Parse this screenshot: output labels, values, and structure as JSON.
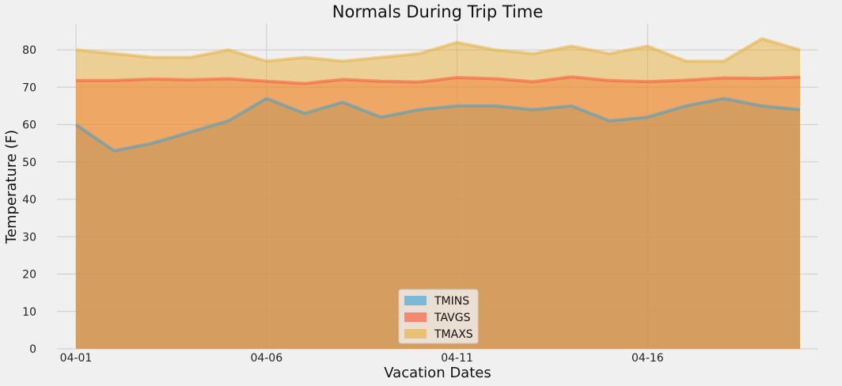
{
  "chart_data": {
    "type": "area",
    "title": "Normals During Trip Time",
    "xlabel": "Vacation Dates",
    "ylabel": "Temperature (F)",
    "x": [
      "04-01",
      "04-02",
      "04-03",
      "04-04",
      "04-05",
      "04-06",
      "04-07",
      "04-08",
      "04-09",
      "04-10",
      "04-11",
      "04-12",
      "04-13",
      "04-14",
      "04-15",
      "04-16",
      "04-17",
      "04-18",
      "04-19",
      "04-20"
    ],
    "xtick_labels": [
      "04-01",
      "04-06",
      "04-11",
      "04-16"
    ],
    "yticks": [
      0,
      10,
      20,
      30,
      40,
      50,
      60,
      70,
      80
    ],
    "ylim": [
      0,
      87
    ],
    "stacked": false,
    "grid": true,
    "legend_position": "bottom-center",
    "series": [
      {
        "name": "TMINS",
        "color": "#30a2da",
        "values": [
          60,
          53,
          55,
          58,
          61,
          67,
          63,
          66,
          62,
          64,
          65,
          65,
          64,
          65,
          61,
          62,
          65,
          67,
          65,
          64
        ]
      },
      {
        "name": "TAVGS",
        "color": "#fc4f30",
        "values": [
          71.8,
          71.8,
          72.2,
          72.0,
          72.3,
          71.6,
          71.0,
          72.1,
          71.6,
          71.4,
          72.6,
          72.3,
          71.5,
          72.8,
          71.8,
          71.5,
          71.9,
          72.5,
          72.4,
          72.7
        ]
      },
      {
        "name": "TMAXS",
        "color": "#e5ae38",
        "values": [
          80,
          79,
          78,
          78,
          80,
          77,
          78,
          77,
          78,
          79,
          82,
          80,
          79,
          81,
          79,
          81,
          77,
          77,
          83,
          80
        ]
      }
    ]
  }
}
